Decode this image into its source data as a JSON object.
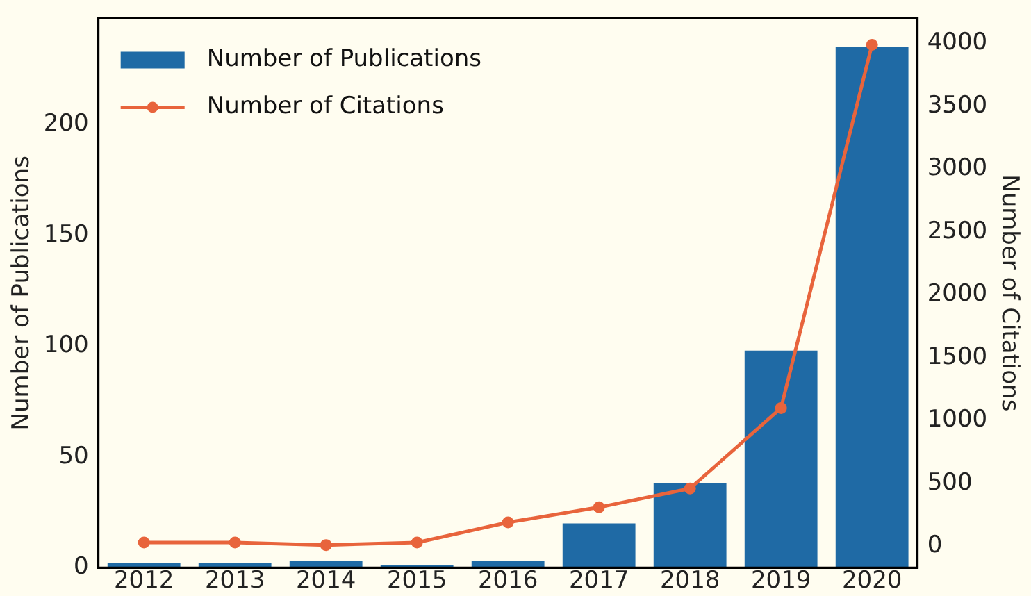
{
  "chart_data": {
    "type": "bar",
    "categories": [
      "2012",
      "2013",
      "2014",
      "2015",
      "2016",
      "2017",
      "2018",
      "2019",
      "2020"
    ],
    "ylabel": "Number of Publications",
    "y2label": "Number of Citations",
    "ylim": [
      0,
      248
    ],
    "yticks": [
      0,
      50,
      100,
      150,
      200
    ],
    "y2lim": [
      -170,
      4200
    ],
    "y2ticks": [
      0,
      500,
      1000,
      1500,
      2000,
      2500,
      3000,
      3500,
      4000
    ],
    "series": [
      {
        "name": "Number of Publications",
        "color": "#1f6aa5",
        "values": [
          2,
          2,
          3,
          1,
          3,
          20,
          38,
          98,
          235
        ]
      },
      {
        "name": "Number of Citations",
        "type": "line",
        "axis": "y2",
        "color": "#e8643c",
        "marker": "circle",
        "values": [
          30,
          30,
          10,
          30,
          190,
          310,
          460,
          1100,
          3990
        ]
      }
    ],
    "legend": "top left",
    "grid": false
  }
}
